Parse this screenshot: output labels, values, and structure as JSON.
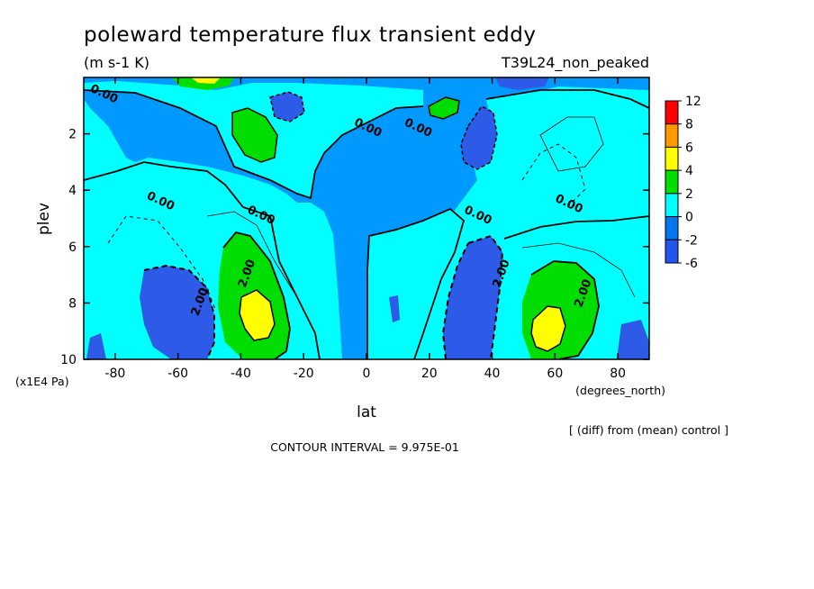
{
  "header": {
    "title": "poleward temperature flux transient eddy",
    "units": "(m s-1 K)",
    "experiment": "T39L24_non_peaked"
  },
  "footer": {
    "contour_interval": "CONTOUR INTERVAL = 9.975E-01",
    "diff_note": "[ (diff) from (mean) control ]"
  },
  "chart_data": {
    "type": "heatmap",
    "title": "poleward temperature flux transient eddy",
    "subtitle": "(m s-1 K)",
    "xlabel": "lat",
    "xunits": "(degrees_north)",
    "ylabel": "plev",
    "yunits": "(x1E4 Pa)",
    "xlim": [
      -90,
      90
    ],
    "ylim": [
      0,
      10
    ],
    "y_inverted": true,
    "x_ticks": [
      "-80",
      "-60",
      "-40",
      "-20",
      "0",
      "20",
      "40",
      "60",
      "80"
    ],
    "y_ticks": [
      "2",
      "4",
      "6",
      "8",
      "10"
    ],
    "colorbar": {
      "labels": [
        "12",
        "8",
        "6",
        "4",
        "2",
        "0",
        "-2",
        "-6"
      ],
      "colors": [
        "#ff0000",
        "#ff9900",
        "#ffff00",
        "#00dd00",
        "#00ffff",
        "#0077ee",
        "#2255ee"
      ]
    },
    "contour_labels": [
      {
        "text": "0.00",
        "lat": -84,
        "plev": 0.7
      },
      {
        "text": "0.00",
        "lat": 0,
        "plev": 1.9
      },
      {
        "text": "0.00",
        "lat": 16,
        "plev": 1.9
      },
      {
        "text": "0.00",
        "lat": -66,
        "plev": 4.5
      },
      {
        "text": "0.00",
        "lat": -34,
        "plev": 5.0
      },
      {
        "text": "0.00",
        "lat": 35,
        "plev": 5.0
      },
      {
        "text": "0.00",
        "lat": 64,
        "plev": 4.6
      },
      {
        "text": "2.00",
        "lat": -37,
        "plev": 7.0
      },
      {
        "text": "2.00",
        "lat": 44,
        "plev": 7.0
      },
      {
        "text": "2.00",
        "lat": -52,
        "plev": 8.0
      },
      {
        "text": "2.00",
        "lat": 70,
        "plev": 7.7
      }
    ],
    "regions": [
      {
        "level": "warm",
        "lat": -37,
        "plev": 8.5
      },
      {
        "level": "warm",
        "lat": 59,
        "plev": 8.9
      },
      {
        "level": "moderate",
        "lat": -32,
        "plev": 7.6
      },
      {
        "level": "moderate",
        "lat": 59,
        "plev": 8.0
      },
      {
        "level": "moderate",
        "lat": -34,
        "plev": 2.0
      },
      {
        "level": "moderate",
        "lat": 22,
        "plev": 1.0
      },
      {
        "level": "negative",
        "lat": -60,
        "plev": 8.0
      },
      {
        "level": "negative",
        "lat": 30,
        "plev": 8.0
      },
      {
        "level": "negative",
        "lat": 35,
        "plev": 2.0
      },
      {
        "level": "negative",
        "lat": -20,
        "plev": 1.0
      }
    ]
  }
}
